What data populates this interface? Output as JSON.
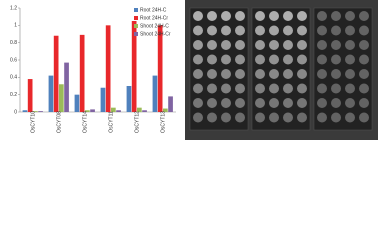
{
  "chart_data": {
    "type": "bar",
    "categories": [
      "OsCYT10",
      "OsCYT08",
      "OsCYT14",
      "OsCYT11",
      "OsCYT12",
      "OsCYT13"
    ],
    "series": [
      {
        "name": "Root 24H-C",
        "color": "#4f81bd",
        "values": [
          0.02,
          0.42,
          0.2,
          0.28,
          0.3,
          0.42
        ]
      },
      {
        "name": "Root 24H-Cr",
        "color": "#e8282b",
        "values": [
          0.38,
          0.88,
          0.89,
          1.0,
          1.05,
          1.0
        ]
      },
      {
        "name": "Shoot 24H-C",
        "color": "#9bbb59",
        "values": [
          0.01,
          0.32,
          0.02,
          0.05,
          0.05,
          0.04
        ]
      },
      {
        "name": "Shoot 24H-Cr",
        "color": "#8064a2",
        "values": [
          0.01,
          0.57,
          0.03,
          0.02,
          0.02,
          0.18
        ]
      }
    ],
    "ylim": [
      0,
      1.2
    ],
    "yticks": [
      0,
      0.2,
      0.4,
      0.6,
      0.8,
      1,
      1.2
    ],
    "grid": false,
    "legend": "top-right"
  }
}
